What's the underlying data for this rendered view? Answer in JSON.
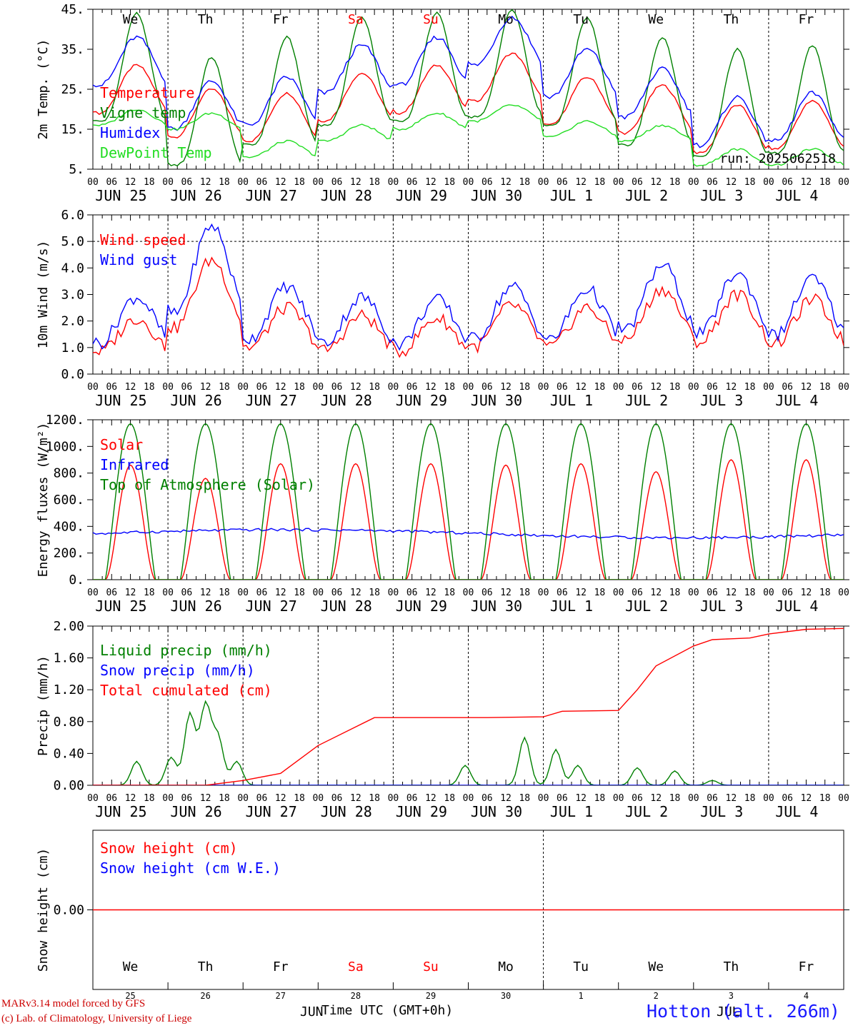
{
  "days": [
    "We",
    "Th",
    "Fr",
    "Sa",
    "Su",
    "Mo",
    "Tu",
    "We",
    "Th",
    "Fr"
  ],
  "weekend_flags": [
    false,
    false,
    false,
    true,
    true,
    false,
    false,
    false,
    false,
    false
  ],
  "date_labels": [
    "JUN 25",
    "JUN 26",
    "JUN 27",
    "JUN 28",
    "JUN 29",
    "JUN 30",
    "JUL  1",
    "JUL  2",
    "JUL  3",
    "JUL  4"
  ],
  "hour_ticks": [
    "00",
    "06",
    "12",
    "18"
  ],
  "last_tick": "00",
  "bottom_day_numbers": [
    "25",
    "26",
    "27",
    "28",
    "29",
    "30",
    "1",
    "2",
    "3",
    "4"
  ],
  "bottom_months": {
    "left": "JUN",
    "right": "JUL"
  },
  "axis_title": "Time UTC (GMT+0h)",
  "station": "Hotton (alt. 266m)",
  "credits": [
    "MARv3.14 model forced by GFS",
    "(c) Lab. of Climatology, University of Liege"
  ],
  "run_label": "run: 2025062518",
  "colors": {
    "red": "#ff0000",
    "green": "#008000",
    "blue": "#0000ff",
    "lightgreen": "#22dd22",
    "weekend": "#ff0000"
  },
  "chart_data": [
    {
      "type": "line",
      "id": "temp",
      "ylabel": "2m Temp. (°C)",
      "ylim": [
        5,
        45
      ],
      "yticks": [
        "5.",
        "15.",
        "25.",
        "35.",
        "45."
      ],
      "ytick_values": [
        5,
        15,
        25,
        35,
        45
      ],
      "dashed_h": [],
      "series": [
        {
          "name": "Temperature",
          "color": "red",
          "mean": 22.0,
          "amp": 6.0,
          "peaks": [
            31,
            25,
            24,
            29,
            31,
            34,
            28,
            26,
            21,
            22
          ]
        },
        {
          "name": "Vigne temp",
          "color": "green",
          "mean": 25.0,
          "amp": 14.0,
          "peaks": [
            44,
            33,
            38,
            43,
            44,
            45,
            43,
            38,
            35,
            36
          ]
        },
        {
          "name": "Humidex",
          "color": "blue",
          "mean": 26.0,
          "amp": 8.0,
          "peaks": [
            38,
            27,
            28,
            36,
            38,
            43,
            35,
            30,
            23,
            24
          ]
        },
        {
          "name": "DewPoint Temp",
          "color": "lightgreen",
          "mean": 15.5,
          "amp": 1.5,
          "peaks": [
            20,
            19,
            12,
            16,
            19,
            21,
            17,
            16,
            10,
            10
          ]
        }
      ]
    },
    {
      "type": "line",
      "id": "wind",
      "ylabel": "10m Wind (m/s)",
      "ylim": [
        0,
        6
      ],
      "yticks": [
        "0.0",
        "1.0",
        "2.0",
        "3.0",
        "4.0",
        "5.0",
        "6.0"
      ],
      "ytick_values": [
        0,
        1,
        2,
        3,
        4,
        5,
        6
      ],
      "dashed_h": [
        5
      ],
      "series": [
        {
          "name": "Wind speed",
          "color": "red",
          "peaks": [
            2.1,
            4.3,
            2.5,
            2.2,
            2.1,
            2.6,
            2.5,
            3.2,
            3.0,
            2.8
          ]
        },
        {
          "name": "Wind gust",
          "color": "blue",
          "peaks": [
            2.9,
            5.6,
            3.3,
            2.9,
            2.8,
            3.3,
            3.2,
            4.1,
            3.8,
            3.6
          ]
        }
      ]
    },
    {
      "type": "line",
      "id": "energy",
      "ylabel": "Energy fluxes (W/m²)",
      "ylim": [
        0,
        1200
      ],
      "yticks": [
        "0.",
        "200.",
        "400.",
        "600.",
        "800.",
        "1000.",
        "1200."
      ],
      "ytick_values": [
        0,
        200,
        400,
        600,
        800,
        1000,
        1200
      ],
      "dashed_h": [],
      "series": [
        {
          "name": "Solar",
          "color": "red",
          "peaks": [
            860,
            760,
            870,
            870,
            870,
            860,
            870,
            810,
            900,
            900
          ]
        },
        {
          "name": "Infrared",
          "color": "blue",
          "mean": 345
        },
        {
          "name": "Top of Atmosphere (Solar)",
          "color": "green",
          "peaks": [
            1170,
            1170,
            1170,
            1170,
            1170,
            1170,
            1170,
            1170,
            1170,
            1170
          ]
        }
      ]
    },
    {
      "type": "line",
      "id": "precip",
      "ylabel": "Precip (mm/h)",
      "ylim": [
        0,
        2
      ],
      "yticks": [
        "0.00",
        "0.40",
        "0.80",
        "1.20",
        "1.60",
        "2.00"
      ],
      "ytick_values": [
        0,
        0.4,
        0.8,
        1.2,
        1.6,
        2.0
      ],
      "dashed_h": [],
      "series": [
        {
          "name": "Liquid precip (mm/h)",
          "color": "green"
        },
        {
          "name": "Snow precip (mm/h)",
          "color": "blue"
        },
        {
          "name": "Total cumulated (cm)",
          "color": "red",
          "x_hours": [
            0,
            36,
            48,
            60,
            72,
            90,
            102,
            120,
            126,
            144,
            150,
            168,
            174,
            180,
            192,
            198,
            204,
            210,
            216,
            228,
            240
          ],
          "y": [
            0,
            0,
            0.06,
            0.15,
            0.5,
            0.85,
            0.85,
            0.85,
            0.85,
            0.86,
            0.93,
            0.94,
            1.2,
            1.5,
            1.75,
            1.83,
            1.84,
            1.85,
            1.9,
            1.96,
            1.97
          ]
        }
      ]
    },
    {
      "type": "line",
      "id": "snow",
      "ylabel": "Snow height (cm)",
      "ylim": [
        -1,
        1
      ],
      "yticks": [
        "0.00"
      ],
      "ytick_values": [
        0
      ],
      "dashed_h": [],
      "series": [
        {
          "name": "Snow height (cm)",
          "color": "red",
          "constant": 0
        },
        {
          "name": "Snow height (cm W.E.)",
          "color": "blue"
        }
      ]
    }
  ]
}
